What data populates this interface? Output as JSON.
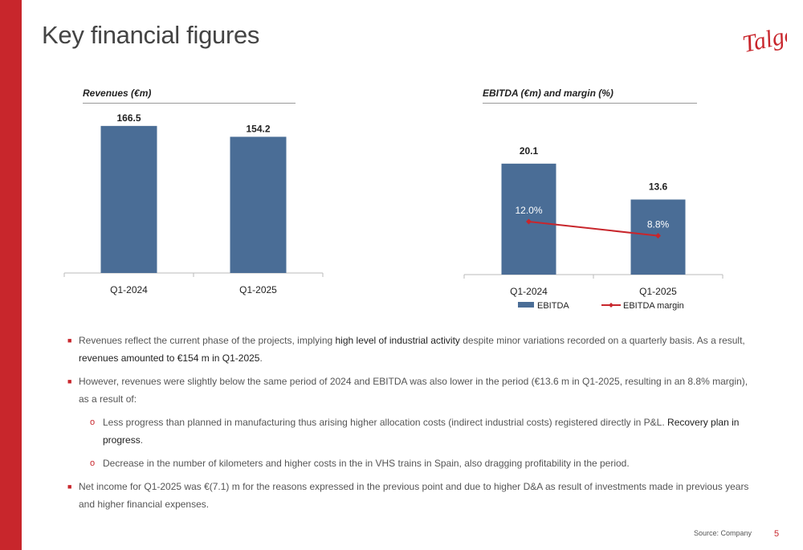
{
  "header": {
    "title": "Key financial figures",
    "logo_text": "Talgo"
  },
  "charts": {
    "revenues": {
      "title": "Revenues (€m)"
    },
    "ebitda": {
      "title": "EBITDA (€m) and margin (%)"
    }
  },
  "chart_data": [
    {
      "type": "bar",
      "title": "Revenues (€m)",
      "categories": [
        "Q1-2024",
        "Q1-2025"
      ],
      "values": [
        166.5,
        154.2
      ],
      "value_labels": [
        "166.5",
        "154.2"
      ],
      "bar_color": "#4a6d96",
      "ylim": [
        0,
        200
      ],
      "grid": false
    },
    {
      "type": "bar",
      "title": "EBITDA (€m) and margin (%)",
      "categories": [
        "Q1-2024",
        "Q1-2025"
      ],
      "series": [
        {
          "name": "EBITDA",
          "type": "bar",
          "values": [
            20.1,
            13.6
          ],
          "labels": [
            "20.1",
            "13.6"
          ],
          "color": "#4a6d96"
        },
        {
          "name": "EBITDA margin",
          "type": "line",
          "values": [
            12.0,
            8.8
          ],
          "labels": [
            "12.0%",
            "8.8%"
          ],
          "color": "#c8262c"
        }
      ],
      "ylim_bar": [
        0,
        24
      ],
      "ylim_line": [
        0,
        30
      ],
      "legend": "bottom",
      "grid": false
    }
  ],
  "bullets": [
    {
      "parts": [
        {
          "text": "Revenues reflect the current phase of the projects, implying ",
          "hl": false
        },
        {
          "text": "high level of industrial activity",
          "hl": true
        },
        {
          "text": " despite minor variations recorded on a quarterly basis. As a result, ",
          "hl": false
        },
        {
          "text": "revenues amounted to €154 m in Q1-2025",
          "hl": true
        },
        {
          "text": ".",
          "hl": false
        }
      ],
      "subs": []
    },
    {
      "parts": [
        {
          "text": "However, revenues were slightly below the same period of 2024 and EBITDA was also lower in the period (€13.6 m in Q1-2025, resulting in an 8.8% margin), as a result of:",
          "hl": false
        }
      ],
      "subs": [
        [
          {
            "text": "Less progress than planned in manufacturing thus arising higher allocation costs (indirect industrial costs) registered directly in P&L. ",
            "hl": false
          },
          {
            "text": "Recovery plan in progress",
            "hl": true
          },
          {
            "text": ".",
            "hl": false
          }
        ],
        [
          {
            "text": "Decrease in the number of kilometers and higher costs in the in VHS trains in Spain, also dragging profitability in the period.",
            "hl": false
          }
        ]
      ]
    },
    {
      "parts": [
        {
          "text": "Net income for Q1-2025 was €(7.1) m for the reasons expressed in the previous point and due to higher D&A as result of investments made in previous years and higher financial expenses.",
          "hl": false
        }
      ],
      "subs": []
    }
  ],
  "footer": {
    "source": "Source: Company",
    "page": "5"
  },
  "colors": {
    "accent": "#c8262c",
    "bar": "#4a6d96"
  }
}
